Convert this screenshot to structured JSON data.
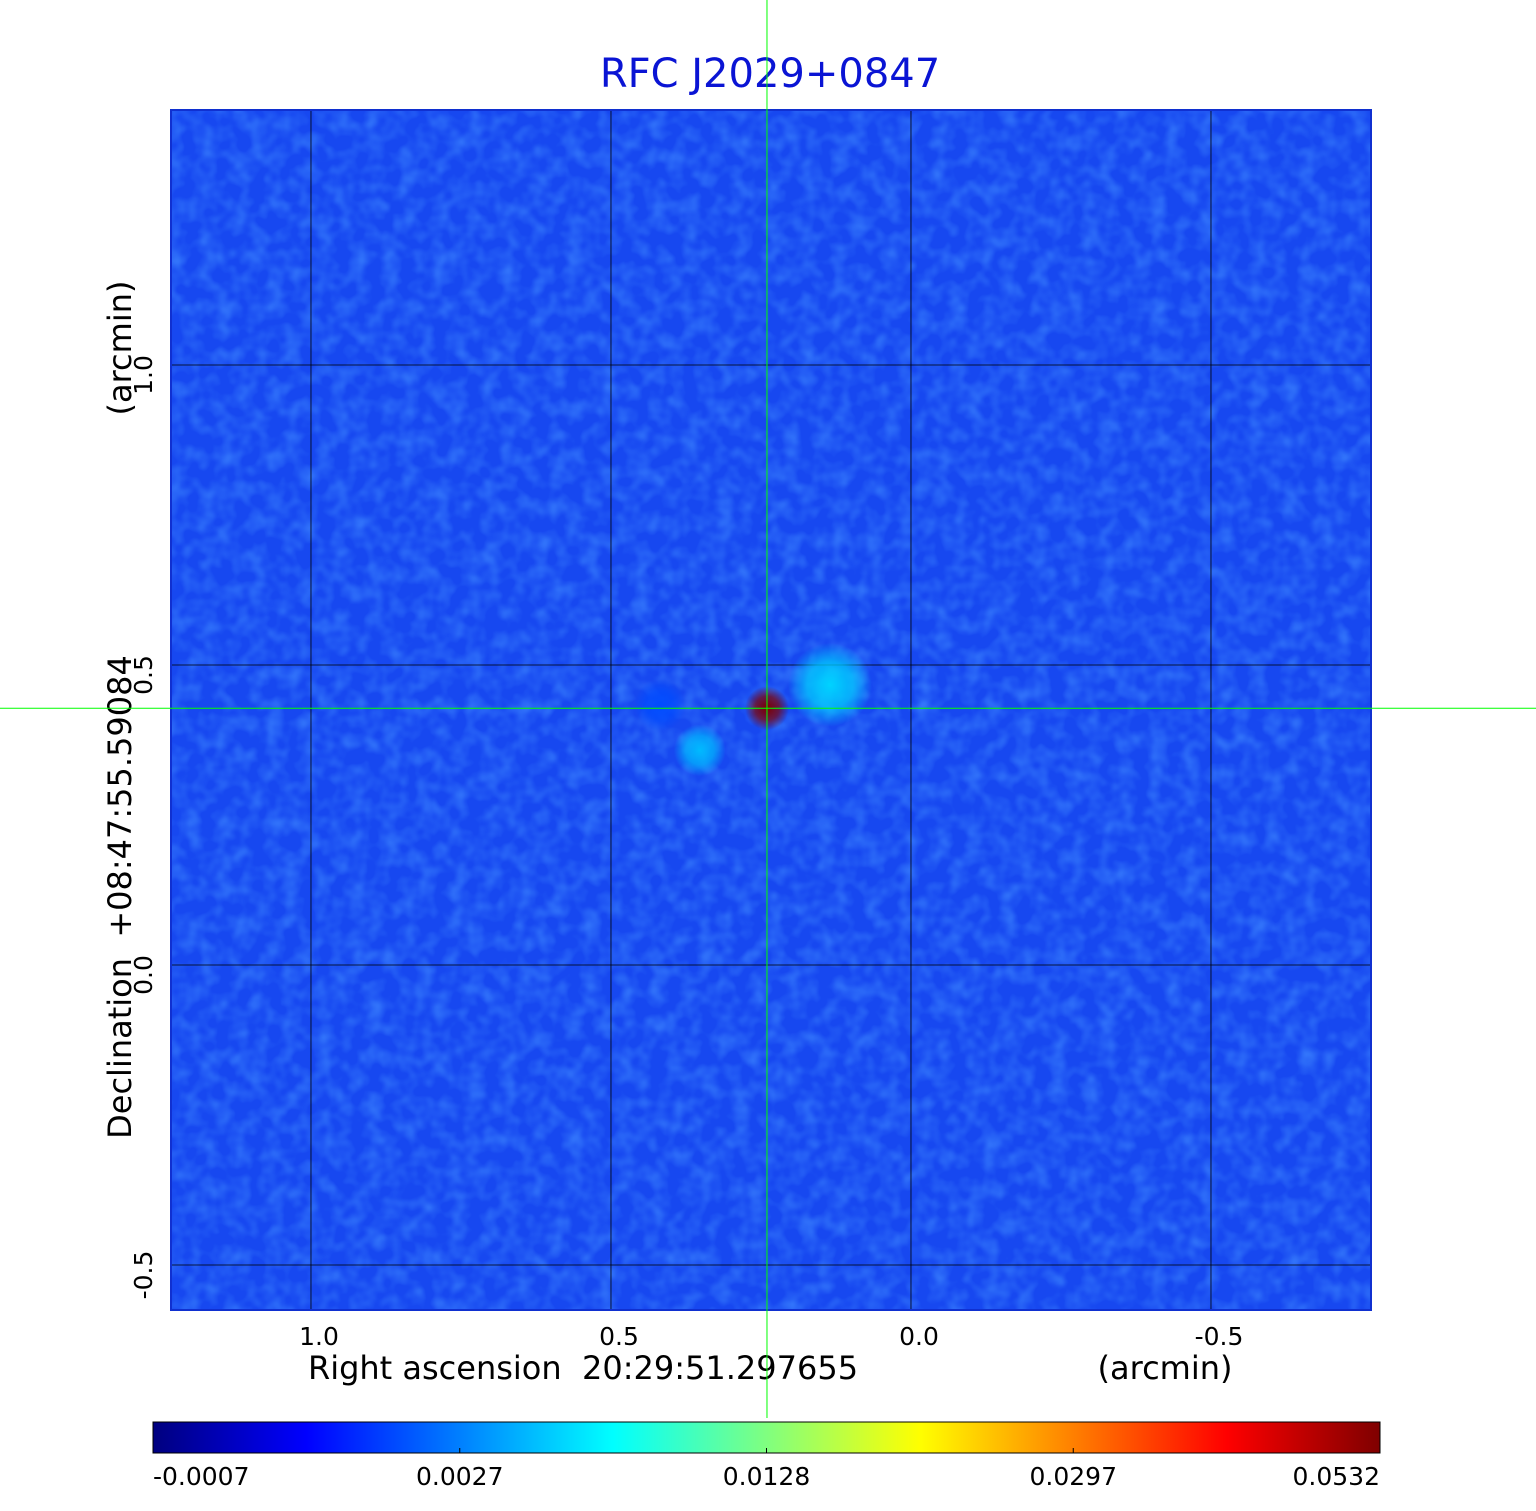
{
  "chart_data": {
    "type": "image",
    "title": "RFC J2029+0847",
    "x_label": "Right ascension  20:29:51.297655",
    "x_unit": "(arcmin)",
    "y_label": "Declination  +08:47:55.59084",
    "y_unit": "(arcmin)",
    "xlim": [
      1.2333,
      -0.7667
    ],
    "ylim": [
      -0.575,
      1.425
    ],
    "xticks": [
      {
        "value": 1,
        "label": "1.0"
      },
      0.5,
      {
        "value": 0,
        "label": "0.0"
      },
      -0.5
    ],
    "yticks": [
      -0.5,
      {
        "value": 0,
        "label": "0.0"
      },
      0.5,
      {
        "value": 1,
        "label": "1.0"
      }
    ],
    "grid": true,
    "colormap": "jet",
    "colorbar_ticks": [
      -0.0007,
      0.0027,
      0.0128,
      0.0297,
      0.0532
    ],
    "crosshair": {
      "x": 0.24,
      "y": 0.428,
      "color": "#00ff00"
    },
    "sources": [
      {
        "x": 0.24,
        "y": 0.428,
        "value": 0.0532
      },
      {
        "x": 0.135,
        "y": 0.467,
        "value": 0.006
      },
      {
        "x": 0.352,
        "y": 0.358,
        "value": 0.005
      },
      {
        "x": 0.418,
        "y": 0.433,
        "value": 0.002
      }
    ]
  }
}
